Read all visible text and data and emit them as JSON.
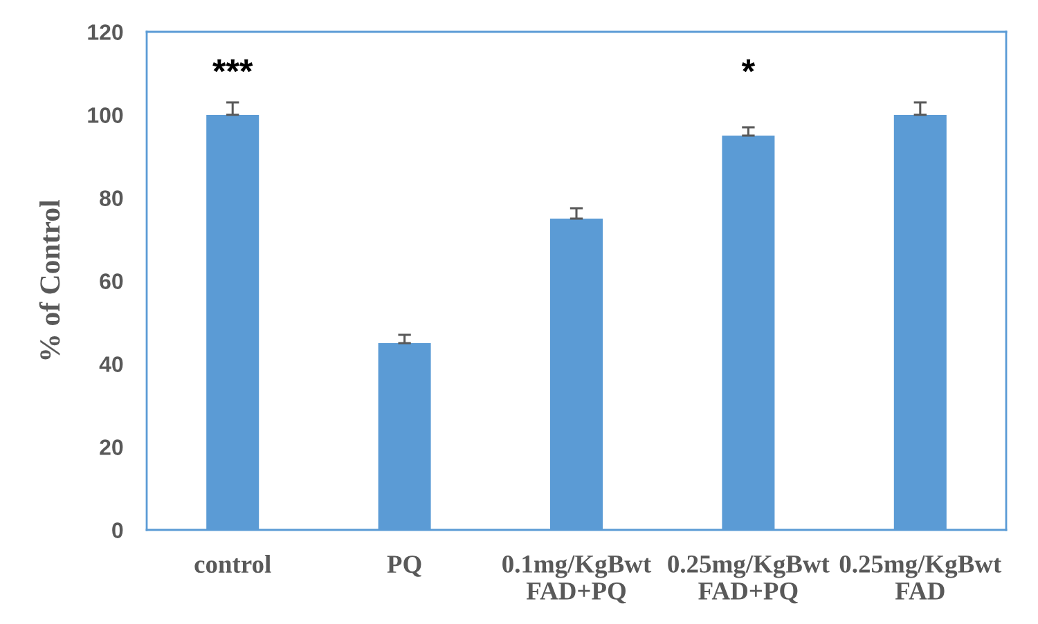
{
  "chart_data": {
    "type": "bar",
    "ylabel": "% of Control",
    "categories": [
      "control",
      "PQ",
      "0.1mg/KgBwt\nFAD+PQ",
      "0.25mg/KgBwt\nFAD+PQ",
      "0.25mg/KgBwt\nFAD"
    ],
    "values": [
      100,
      45,
      75,
      95,
      100
    ],
    "errors": [
      3,
      2,
      2.5,
      2,
      3
    ],
    "value_labels": [
      "***",
      null,
      null,
      "*",
      null
    ],
    "color": "#5b9bd5",
    "ylim": [
      0,
      120
    ],
    "yticks": [
      0,
      20,
      40,
      60,
      80,
      100,
      120
    ],
    "grid": false,
    "legend": false
  }
}
